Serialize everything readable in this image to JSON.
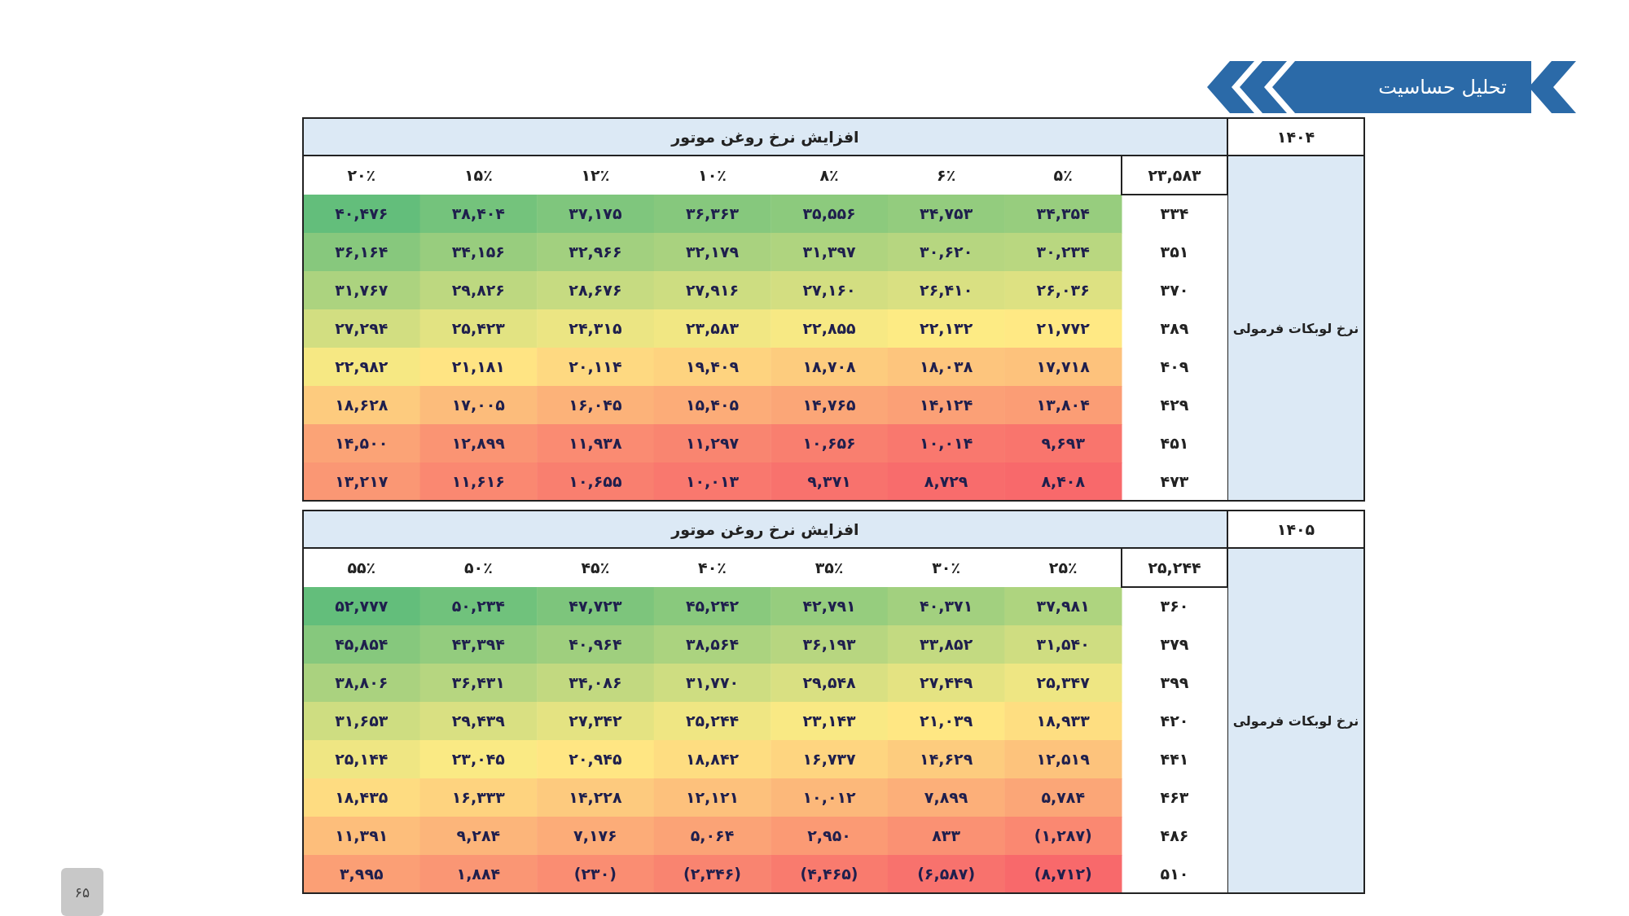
{
  "chart_data": [
    {
      "type": "heatmap",
      "xlabel": "افزایش نرخ روغن موتور",
      "ylabel": "نرخ لوبکات فرمولی",
      "categories": [
        "۲۰٪",
        "۱۵٪",
        "۱۲٪",
        "۱۰٪",
        "۸٪",
        "۶٪",
        "۵٪"
      ],
      "y_categories": [
        "۳۳۴",
        "۳۵۱",
        "۳۷۰",
        "۳۸۹",
        "۴۰۹",
        "۴۲۹",
        "۴۵۱",
        "۴۷۳"
      ],
      "cells": [
        [
          40476,
          38404,
          37175,
          36363,
          35556,
          34753,
          34354
        ],
        [
          36164,
          34156,
          32966,
          32179,
          31397,
          30620,
          30234
        ],
        [
          31767,
          29826,
          28676,
          27916,
          27160,
          26410,
          26036
        ],
        [
          27294,
          25423,
          24315,
          23583,
          22855,
          22132,
          21772
        ],
        [
          22982,
          21181,
          20114,
          19409,
          18708,
          18038,
          17718
        ],
        [
          18628,
          17005,
          16045,
          15405,
          14765,
          14124,
          13804
        ],
        [
          14500,
          12899,
          11938,
          11297,
          10656,
          10014,
          9693
        ],
        [
          13217,
          11616,
          10655,
          10013,
          9371,
          8729,
          8408
        ]
      ],
      "cell_labels": [
        [
          "۴۰,۴۷۶",
          "۳۸,۴۰۴",
          "۳۷,۱۷۵",
          "۳۶,۳۶۳",
          "۳۵,۵۵۶",
          "۳۴,۷۵۳",
          "۳۴,۳۵۴"
        ],
        [
          "۳۶,۱۶۴",
          "۳۴,۱۵۶",
          "۳۲,۹۶۶",
          "۳۲,۱۷۹",
          "۳۱,۳۹۷",
          "۳۰,۶۲۰",
          "۳۰,۲۳۴"
        ],
        [
          "۳۱,۷۶۷",
          "۲۹,۸۲۶",
          "۲۸,۶۷۶",
          "۲۷,۹۱۶",
          "۲۷,۱۶۰",
          "۲۶,۴۱۰",
          "۲۶,۰۳۶"
        ],
        [
          "۲۷,۲۹۴",
          "۲۵,۴۲۳",
          "۲۴,۳۱۵",
          "۲۳,۵۸۳",
          "۲۲,۸۵۵",
          "۲۲,۱۳۲",
          "۲۱,۷۷۲"
        ],
        [
          "۲۲,۹۸۲",
          "۲۱,۱۸۱",
          "۲۰,۱۱۴",
          "۱۹,۴۰۹",
          "۱۸,۷۰۸",
          "۱۸,۰۳۸",
          "۱۷,۷۱۸"
        ],
        [
          "۱۸,۶۲۸",
          "۱۷,۰۰۵",
          "۱۶,۰۴۵",
          "۱۵,۴۰۵",
          "۱۴,۷۶۵",
          "۱۴,۱۲۴",
          "۱۳,۸۰۴"
        ],
        [
          "۱۴,۵۰۰",
          "۱۲,۸۹۹",
          "۱۱,۹۳۸",
          "۱۱,۲۹۷",
          "۱۰,۶۵۶",
          "۱۰,۰۱۴",
          "۹,۶۹۳"
        ],
        [
          "۱۳,۲۱۷",
          "۱۱,۶۱۶",
          "۱۰,۶۵۵",
          "۱۰,۰۱۳",
          "۹,۳۷۱",
          "۸,۷۲۹",
          "۸,۴۰۸"
        ]
      ],
      "annotations": [
        "۲۳,۵۸۳",
        "۱۴۰۴",
        "تحلیل حساسیت"
      ]
    },
    {
      "type": "heatmap",
      "xlabel": "افزایش نرخ روغن موتور",
      "ylabel": "نرخ لوبکات فرمولی",
      "categories": [
        "۵۵٪",
        "۵۰٪",
        "۴۵٪",
        "۴۰٪",
        "۳۵٪",
        "۳۰٪",
        "۲۵٪"
      ],
      "y_categories": [
        "۳۶۰",
        "۳۷۹",
        "۳۹۹",
        "۴۲۰",
        "۴۴۱",
        "۴۶۳",
        "۴۸۶",
        "۵۱۰"
      ],
      "cells": [
        [
          52777,
          50234,
          47723,
          45242,
          42791,
          40371,
          37981
        ],
        [
          45854,
          43394,
          40964,
          38564,
          36193,
          33852,
          31540
        ],
        [
          38806,
          36431,
          34086,
          31770,
          29548,
          27449,
          25347
        ],
        [
          31653,
          29439,
          27342,
          25244,
          23143,
          21039,
          18933
        ],
        [
          25144,
          23045,
          20945,
          18842,
          16737,
          14629,
          12519
        ],
        [
          18435,
          16333,
          14228,
          12121,
          10012,
          7899,
          5784
        ],
        [
          11391,
          9284,
          7176,
          5064,
          2950,
          833,
          -1287
        ],
        [
          3995,
          1884,
          -230,
          -2346,
          -4465,
          -6587,
          -8712
        ]
      ],
      "cell_labels": [
        [
          "۵۲,۷۷۷",
          "۵۰,۲۳۴",
          "۴۷,۷۲۳",
          "۴۵,۲۴۲",
          "۴۲,۷۹۱",
          "۴۰,۳۷۱",
          "۳۷,۹۸۱"
        ],
        [
          "۴۵,۸۵۴",
          "۴۳,۳۹۴",
          "۴۰,۹۶۴",
          "۳۸,۵۶۴",
          "۳۶,۱۹۳",
          "۳۳,۸۵۲",
          "۳۱,۵۴۰"
        ],
        [
          "۳۸,۸۰۶",
          "۳۶,۴۳۱",
          "۳۴,۰۸۶",
          "۳۱,۷۷۰",
          "۲۹,۵۴۸",
          "۲۷,۴۴۹",
          "۲۵,۳۴۷"
        ],
        [
          "۳۱,۶۵۳",
          "۲۹,۴۳۹",
          "۲۷,۳۴۲",
          "۲۵,۲۴۴",
          "۲۳,۱۴۳",
          "۲۱,۰۳۹",
          "۱۸,۹۳۳"
        ],
        [
          "۲۵,۱۴۴",
          "۲۳,۰۴۵",
          "۲۰,۹۴۵",
          "۱۸,۸۴۲",
          "۱۶,۷۳۷",
          "۱۴,۶۲۹",
          "۱۲,۵۱۹"
        ],
        [
          "۱۸,۴۳۵",
          "۱۶,۳۳۳",
          "۱۴,۲۲۸",
          "۱۲,۱۲۱",
          "۱۰,۰۱۲",
          "۷,۸۹۹",
          "۵,۷۸۴"
        ],
        [
          "۱۱,۳۹۱",
          "۹,۲۸۴",
          "۷,۱۷۶",
          "۵,۰۶۴",
          "۲,۹۵۰",
          "۸۳۳",
          "(۱,۲۸۷)"
        ],
        [
          "۳,۹۹۵",
          "۱,۸۸۴",
          "(۲۳۰)",
          "(۲,۳۴۶)",
          "(۴,۴۶۵)",
          "(۶,۵۸۷)",
          "(۸,۷۱۲)"
        ]
      ],
      "annotations": [
        "۲۵,۲۴۴",
        "۱۴۰۵",
        "۶۵"
      ]
    }
  ]
}
